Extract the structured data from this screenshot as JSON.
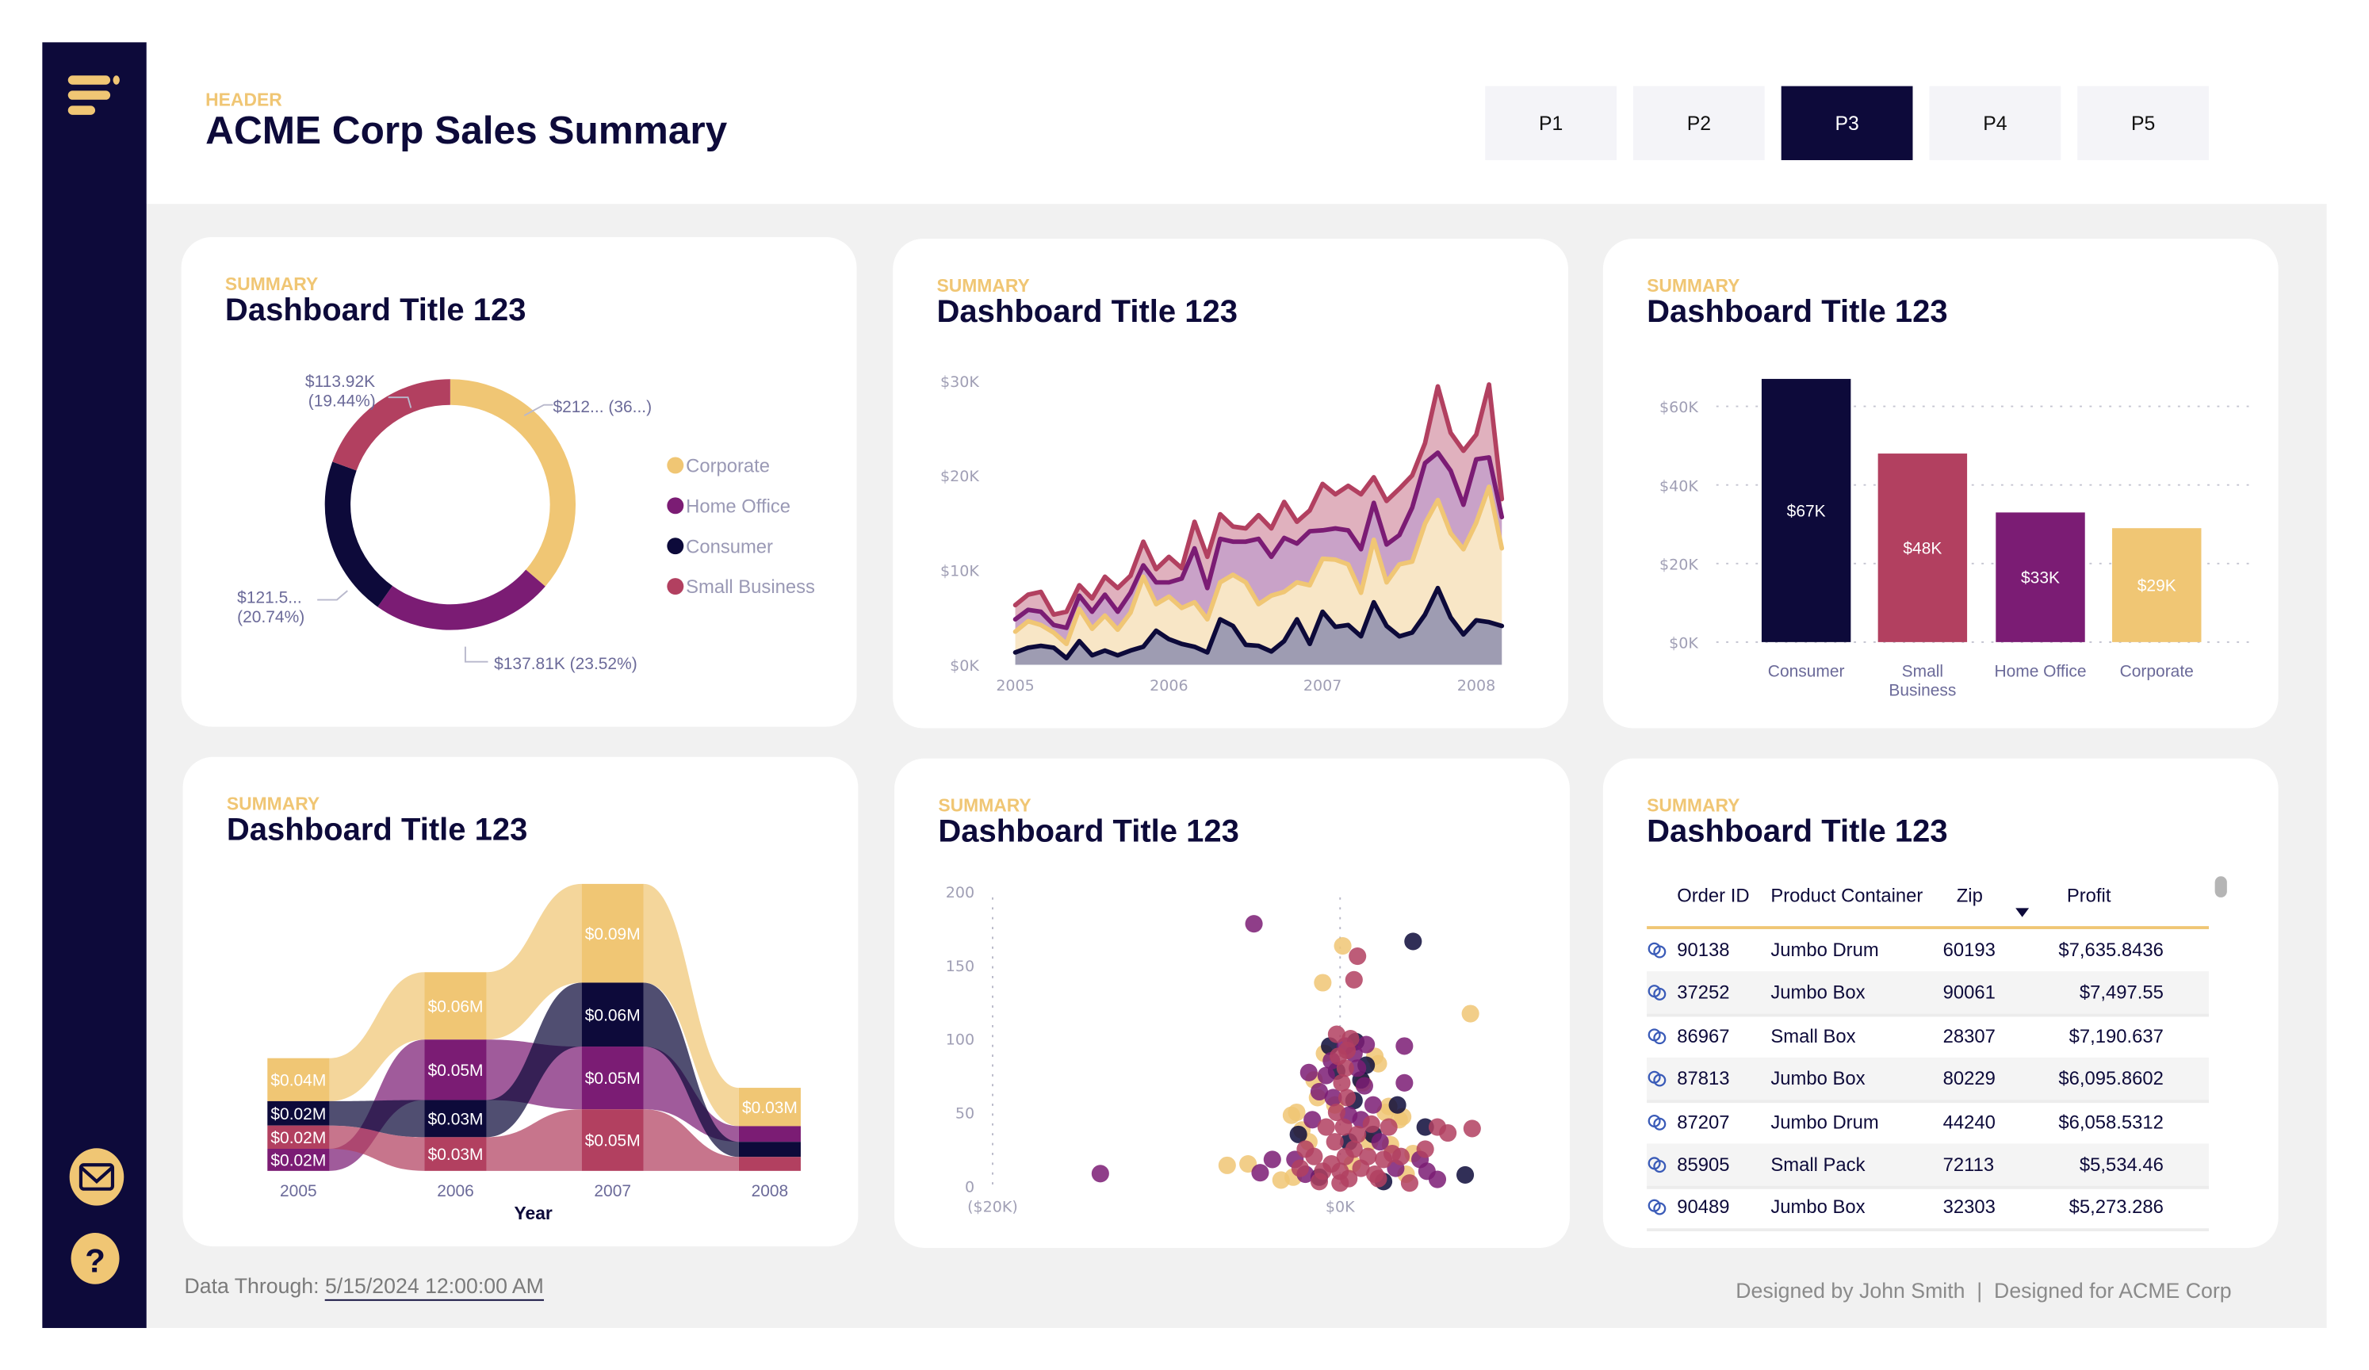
{
  "colors": {
    "navy": "#0d0a3a",
    "accent": "#f0c674",
    "Corporate": "#f0c674",
    "Home Office": "#7b1c74",
    "Consumer": "#0d0a3a",
    "Small Business": "#b24060",
    "background": "#f1f1f1"
  },
  "sidebar": {
    "icons": [
      "menu-icon",
      "mail-icon",
      "help-icon"
    ]
  },
  "header": {
    "label": "HEADER",
    "title": "ACME Corp Sales Summary",
    "tabs": [
      "P1",
      "P2",
      "P3",
      "P4",
      "P5"
    ],
    "active_tab": "P3"
  },
  "cards": [
    {
      "label": "SUMMARY",
      "title": "Dashboard Title 123"
    },
    {
      "label": "SUMMARY",
      "title": "Dashboard Title 123"
    },
    {
      "label": "SUMMARY",
      "title": "Dashboard Title 123"
    },
    {
      "label": "SUMMARY",
      "title": "Dashboard Title 123"
    },
    {
      "label": "SUMMARY",
      "title": "Dashboard Title 123"
    },
    {
      "label": "SUMMARY",
      "title": "Dashboard Title 123"
    }
  ],
  "chart_data": [
    {
      "type": "pie",
      "donut": true,
      "legend": [
        "Corporate",
        "Home Office",
        "Consumer",
        "Small Business"
      ],
      "legend_position": "right",
      "slices": [
        {
          "name": "Corporate",
          "value": 212.7,
          "percent": 36.3,
          "label": "$212... (36...)"
        },
        {
          "name": "Home Office",
          "value": 137.81,
          "percent": 23.52,
          "label": "$137.81K (23.52%)"
        },
        {
          "name": "Consumer",
          "value": 121.5,
          "percent": 20.74,
          "label_lines": [
            "$121.5...",
            "(20.74%)"
          ]
        },
        {
          "name": "Small Business",
          "value": 113.92,
          "percent": 19.44,
          "label_lines": [
            "$113.92K",
            "(19.44%)"
          ]
        }
      ]
    },
    {
      "type": "area",
      "stacked": true,
      "x": [
        "2005-01",
        "2005-02",
        "2005-03",
        "2005-04",
        "2005-05",
        "2005-06",
        "2005-07",
        "2005-08",
        "2005-09",
        "2005-10",
        "2005-11",
        "2005-12",
        "2006-01",
        "2006-02",
        "2006-03",
        "2006-04",
        "2006-05",
        "2006-06",
        "2006-07",
        "2006-08",
        "2006-09",
        "2006-10",
        "2006-11",
        "2006-12",
        "2007-01",
        "2007-02",
        "2007-03",
        "2007-04",
        "2007-05",
        "2007-06",
        "2007-07",
        "2007-08",
        "2007-09",
        "2007-10",
        "2007-11",
        "2007-12",
        "2008-01",
        "2008-02",
        "2008-03"
      ],
      "xticks": [
        "2005",
        "2006",
        "2007",
        "2008"
      ],
      "yticks": [
        "$0K",
        "$10K",
        "$20K",
        "$30K"
      ],
      "ylim": [
        0,
        30
      ],
      "y_unit": "$K",
      "series": [
        {
          "name": "Consumer",
          "values": [
            1.3,
            1.8,
            2.0,
            1.8,
            0.7,
            2.5,
            1.0,
            1.5,
            1.0,
            1.5,
            1.9,
            3.6,
            2.7,
            2.2,
            1.9,
            1.3,
            4.8,
            4.1,
            2.1,
            2.0,
            1.4,
            2.5,
            4.8,
            2.2,
            5.6,
            4.0,
            4.2,
            3.0,
            6.6,
            4.1,
            3.0,
            3.4,
            5.3,
            8.1,
            5.0,
            3.2,
            4.7,
            4.5,
            4.1
          ]
        },
        {
          "name": "Corporate",
          "values": [
            2.2,
            2.8,
            2.2,
            1.6,
            1.5,
            3.4,
            2.8,
            3.7,
            2.7,
            4.0,
            7.4,
            2.8,
            4.5,
            3.8,
            4.7,
            3.5,
            3.9,
            5.4,
            6.6,
            4.4,
            5.9,
            5.2,
            3.9,
            6.2,
            5.6,
            7.1,
            6.4,
            4.6,
            6.6,
            4.6,
            7.6,
            7.5,
            9.6,
            9.3,
            8.9,
            9.0,
            10.3,
            14.3,
            8.2
          ]
        },
        {
          "name": "Home Office",
          "values": [
            1.3,
            1.2,
            1.4,
            0.8,
            1.7,
            1.4,
            1.8,
            2.2,
            1.9,
            2.1,
            1.2,
            2.3,
            1.5,
            3.1,
            5.7,
            3.3,
            4.6,
            3.5,
            4.3,
            6.9,
            4.1,
            5.7,
            4.1,
            5.7,
            3.0,
            3.3,
            3.6,
            4.6,
            3.9,
            4.0,
            3.1,
            5.7,
            6.4,
            5.0,
            6.6,
            4.7,
            6.7,
            3.1,
            3.3
          ]
        },
        {
          "name": "Small Business",
          "values": [
            1.5,
            1.6,
            2.1,
            1.1,
            1.7,
            1.1,
            1.4,
            1.9,
            2.5,
            1.8,
            2.5,
            1.4,
            2.7,
            1.1,
            2.8,
            3.3,
            2.6,
            1.6,
            1.4,
            2.5,
            3.0,
            3.8,
            2.3,
            2.2,
            4.9,
            3.6,
            4.7,
            5.8,
            2.7,
            4.6,
            4.9,
            3.4,
            2.1,
            7.0,
            4.0,
            5.7,
            2.6,
            7.7,
            1.9
          ]
        }
      ]
    },
    {
      "type": "bar",
      "categories": [
        "Consumer",
        "Small Business",
        "Home Office",
        "Corporate"
      ],
      "category_lines": [
        [
          "Consumer"
        ],
        [
          "Small",
          "Business"
        ],
        [
          "Home Office"
        ],
        [
          "Corporate"
        ]
      ],
      "values": [
        67,
        48,
        33,
        29
      ],
      "data_labels": [
        "$67K",
        "$48K",
        "$33K",
        "$29K"
      ],
      "yticks": [
        "$0K",
        "$20K",
        "$40K",
        "$60K"
      ],
      "ylim": [
        0,
        60
      ],
      "y_unit": "$K",
      "grid": "dotted"
    },
    {
      "type": "ribbon",
      "xlabel": "Year",
      "categories": [
        "2005",
        "2006",
        "2007",
        "2008"
      ],
      "y_unit": "$M",
      "series": [
        {
          "name": "Corporate",
          "values": [
            0.037,
            0.058,
            0.085,
            0.033
          ],
          "labels": [
            "$0.04M",
            "$0.06M",
            "$0.09M",
            "$0.03M"
          ]
        },
        {
          "name": "Home Office",
          "values": [
            0.019,
            0.052,
            0.054,
            0.0135
          ],
          "labels": [
            "$0.02M",
            "$0.05M",
            "$0.05M",
            ""
          ]
        },
        {
          "name": "Consumer",
          "values": [
            0.021,
            0.032,
            0.055,
            0.013
          ],
          "labels": [
            "$0.02M",
            "$0.03M",
            "$0.06M",
            ""
          ]
        },
        {
          "name": "Small Business",
          "values": [
            0.02,
            0.029,
            0.053,
            0.012
          ],
          "labels": [
            "$0.02M",
            "$0.03M",
            "$0.05M",
            ""
          ]
        }
      ]
    },
    {
      "type": "scatter",
      "xticks": [
        "($20K)",
        "$0K"
      ],
      "yticks": [
        "0",
        "50",
        "100",
        "150",
        "200"
      ],
      "xlim": [
        -20,
        7.5
      ],
      "ylim": [
        0,
        200
      ],
      "x_unit": "$K",
      "series_names": [
        "Corporate",
        "Home Office",
        "Consumer",
        "Small Business"
      ],
      "points": [
        [
          -0.9,
          90,
          0
        ],
        [
          -1.5,
          72,
          0
        ],
        [
          -1.3,
          60,
          0
        ],
        [
          1.3,
          70,
          0
        ],
        [
          2.0,
          88,
          0
        ],
        [
          -2.8,
          48,
          0
        ],
        [
          -2.2,
          38,
          0
        ],
        [
          -1.8,
          30,
          0
        ],
        [
          2.6,
          50,
          0
        ],
        [
          3.4,
          45,
          0
        ],
        [
          -3.4,
          4,
          0
        ],
        [
          -2.7,
          6,
          0
        ],
        [
          2.9,
          28,
          0
        ],
        [
          4.2,
          22,
          0
        ],
        [
          0.7,
          15,
          0
        ],
        [
          -0.3,
          55,
          0
        ],
        [
          3.8,
          8,
          0
        ],
        [
          1.7,
          30,
          0
        ],
        [
          0.15,
          163,
          0
        ],
        [
          -1.0,
          138,
          0
        ],
        [
          7.5,
          117,
          0
        ],
        [
          2.2,
          83,
          0
        ],
        [
          -2.5,
          50,
          0
        ],
        [
          2.8,
          54,
          0
        ],
        [
          3.6,
          47,
          0
        ],
        [
          -6.5,
          14,
          0
        ],
        [
          -5.3,
          15,
          0
        ],
        [
          -0.6,
          95,
          2
        ],
        [
          0.9,
          98,
          2
        ],
        [
          1.5,
          82,
          2
        ],
        [
          1.2,
          72,
          2
        ],
        [
          0.8,
          58,
          2
        ],
        [
          -1.2,
          6,
          2
        ],
        [
          0.5,
          30,
          2
        ],
        [
          2.5,
          3,
          2
        ],
        [
          -0.2,
          78,
          2
        ],
        [
          1.9,
          35,
          2
        ],
        [
          4.2,
          166,
          2
        ],
        [
          7.2,
          7.5,
          2
        ],
        [
          3.3,
          55,
          2
        ],
        [
          4.9,
          40,
          2
        ],
        [
          -2.4,
          35,
          2
        ],
        [
          -0.5,
          85,
          1
        ],
        [
          0.8,
          90,
          1
        ],
        [
          1.0,
          80,
          1
        ],
        [
          1.4,
          68,
          1
        ],
        [
          -0.4,
          60,
          1
        ],
        [
          0.5,
          48,
          1
        ],
        [
          1.2,
          45,
          1
        ],
        [
          -1.6,
          45,
          1
        ],
        [
          -2.6,
          18,
          1
        ],
        [
          -2.0,
          8,
          1
        ],
        [
          2.3,
          30,
          1
        ],
        [
          3.2,
          12,
          1
        ],
        [
          4.6,
          18,
          1
        ],
        [
          5.0,
          10,
          1
        ],
        [
          0.3,
          95,
          1
        ],
        [
          -0.8,
          75,
          1
        ],
        [
          -4.96,
          178,
          1
        ],
        [
          -13.8,
          8.4,
          1
        ],
        [
          3.7,
          95,
          1
        ],
        [
          3.7,
          70,
          1
        ],
        [
          -4.6,
          9,
          1
        ],
        [
          -3.9,
          18,
          1
        ],
        [
          -1.8,
          77,
          1
        ],
        [
          -1.2,
          64,
          1
        ],
        [
          1.5,
          96,
          1
        ],
        [
          1.9,
          55,
          1
        ],
        [
          5.6,
          4.5,
          1
        ],
        [
          0,
          10,
          3
        ],
        [
          0.3,
          20,
          3
        ],
        [
          -0.3,
          30,
          3
        ],
        [
          0.5,
          5,
          3
        ],
        [
          -0.5,
          15,
          3
        ],
        [
          0.8,
          25,
          3
        ],
        [
          0.2,
          40,
          3
        ],
        [
          -0.2,
          50,
          3
        ],
        [
          0.4,
          60,
          3
        ],
        [
          0.1,
          70,
          3
        ],
        [
          0.3,
          80,
          3
        ],
        [
          -0.1,
          88,
          3
        ],
        [
          1.2,
          12,
          3
        ],
        [
          1.6,
          20,
          3
        ],
        [
          2.0,
          8,
          3
        ],
        [
          -1.0,
          10,
          3
        ],
        [
          -1.5,
          20,
          3
        ],
        [
          -2.3,
          12,
          3
        ],
        [
          2.5,
          18,
          3
        ],
        [
          3.0,
          22,
          3
        ],
        [
          -0.8,
          40,
          3
        ],
        [
          1.0,
          35,
          3
        ],
        [
          1.8,
          42,
          3
        ],
        [
          2.8,
          40,
          3
        ],
        [
          3.5,
          20,
          3
        ],
        [
          0.6,
          100,
          3
        ],
        [
          -2.0,
          25,
          3
        ],
        [
          2.2,
          5,
          3
        ],
        [
          -1.2,
          3,
          3
        ],
        [
          0,
          2,
          3
        ],
        [
          1.0,
          156,
          3
        ],
        [
          0.8,
          140,
          3
        ],
        [
          7.6,
          39,
          3
        ],
        [
          5.6,
          40,
          3
        ],
        [
          6.2,
          36,
          3
        ],
        [
          -0.2,
          103,
          3
        ],
        [
          4.9,
          25,
          3
        ],
        [
          4.0,
          2,
          3
        ],
        [
          0.4,
          92,
          3
        ]
      ]
    }
  ],
  "table": {
    "columns": [
      "Order ID",
      "Product Container",
      "Zip",
      "Profit"
    ],
    "sorted_column": "Profit",
    "sort_direction": "descending",
    "rows": [
      [
        "90138",
        "Jumbo Drum",
        "60193",
        "$7,635.8436"
      ],
      [
        "37252",
        "Jumbo Box",
        "90061",
        "$7,497.55"
      ],
      [
        "86967",
        "Small Box",
        "28307",
        "$7,190.637"
      ],
      [
        "87813",
        "Jumbo Box",
        "80229",
        "$6,095.8602"
      ],
      [
        "87207",
        "Jumbo Drum",
        "44240",
        "$6,058.5312"
      ],
      [
        "85905",
        "Small Pack",
        "72113",
        "$5,534.46"
      ],
      [
        "90489",
        "Jumbo Box",
        "32303",
        "$5,273.286"
      ]
    ],
    "row_icon": "link-icon"
  },
  "footer": {
    "data_through_label": "Data Through:",
    "data_through_value": "5/15/2024 12:00:00 AM",
    "credits": "Designed by John Smith  |  Designed for ACME Corp"
  }
}
